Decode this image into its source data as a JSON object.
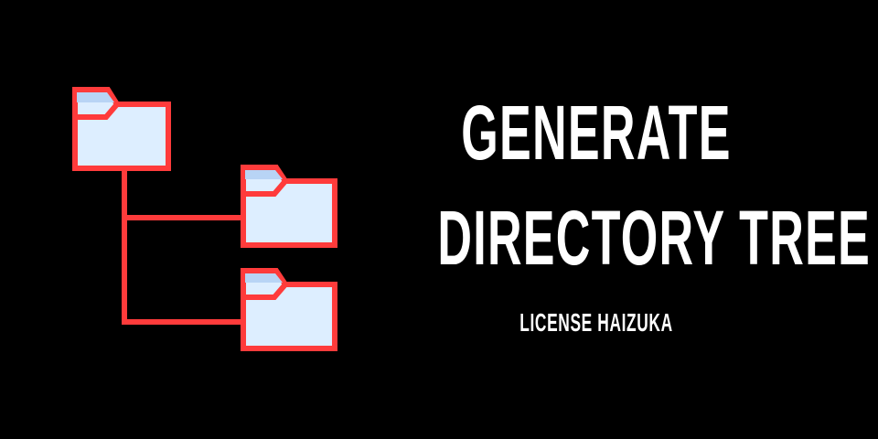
{
  "title": {
    "line1": "GENERATE",
    "line2": "DIRECTORY TREE"
  },
  "subtitle": "LICENSE HAIZUKA",
  "icons": {
    "root_folder": "folder-icon",
    "child_folder_1": "folder-icon",
    "child_folder_2": "folder-icon"
  },
  "colors": {
    "background": "#000000",
    "text": "#ffffff",
    "outline": "#ff3b3b",
    "folder_body": "#ddeeff",
    "folder_tab": "#b8d4f5"
  }
}
